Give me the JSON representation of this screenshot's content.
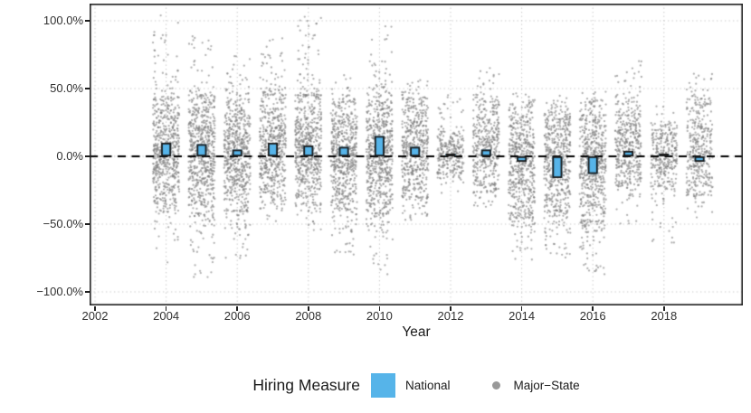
{
  "chart_data": {
    "type": "scatter+bar",
    "title": "",
    "xlabel": "Year",
    "ylabel": "",
    "x_ticks": [
      {
        "label": "2002",
        "value": 2002
      },
      {
        "label": "2004",
        "value": 2004
      },
      {
        "label": "2006",
        "value": 2006
      },
      {
        "label": "2008",
        "value": 2008
      },
      {
        "label": "2010",
        "value": 2010
      },
      {
        "label": "2012",
        "value": 2012
      },
      {
        "label": "2014",
        "value": 2014
      },
      {
        "label": "2016",
        "value": 2016
      },
      {
        "label": "2018",
        "value": 2018
      }
    ],
    "y_ticks": [
      {
        "label": "100.0%",
        "value": 100
      },
      {
        "label": "50.0%",
        "value": 50
      },
      {
        "label": "0.0%",
        "value": 0
      },
      {
        "label": "−50.0%",
        "value": -50
      },
      {
        "label": "−100.0%",
        "value": -100
      }
    ],
    "xlim": [
      2001.85,
      2020.2
    ],
    "ylim": [
      -110,
      112.5
    ],
    "grid": "dotted",
    "zero_reference_line": {
      "y": 0,
      "style": "dashed",
      "color": "#000000"
    },
    "legend": {
      "title": "Hiring Measure",
      "position": "bottom",
      "items": [
        {
          "label": "National",
          "marker": "square",
          "color": "#56B4E9"
        },
        {
          "label": "Major−State",
          "marker": "dot",
          "color": "#999999"
        }
      ]
    },
    "series": [
      {
        "name": "National",
        "type": "bar",
        "color": "#56B4E9",
        "outline": "#1a1a1a",
        "years": [
          2004,
          2005,
          2006,
          2007,
          2008,
          2009,
          2010,
          2011,
          2012,
          2013,
          2014,
          2015,
          2016,
          2017,
          2018,
          2019
        ],
        "values": [
          10,
          9,
          5,
          10,
          8,
          7,
          15,
          7,
          2,
          5,
          -4,
          -16,
          -13,
          4,
          2,
          -4
        ]
      },
      {
        "name": "Major−State",
        "type": "jitter-scatter",
        "color": "#7d7d7d",
        "point_alpha": 0.6,
        "clouds": [
          {
            "year": 2004,
            "dense": [
              -38,
              42
            ],
            "range": [
              -80,
              104
            ],
            "n": 620
          },
          {
            "year": 2005,
            "dense": [
              -42,
              45
            ],
            "range": [
              -90,
              92
            ],
            "n": 680
          },
          {
            "year": 2006,
            "dense": [
              -40,
              42
            ],
            "range": [
              -75,
              76
            ],
            "n": 620
          },
          {
            "year": 2007,
            "dense": [
              -34,
              45
            ],
            "range": [
              -48,
              88
            ],
            "n": 560
          },
          {
            "year": 2008,
            "dense": [
              -36,
              45
            ],
            "range": [
              -55,
              104
            ],
            "n": 620
          },
          {
            "year": 2009,
            "dense": [
              -38,
              40
            ],
            "range": [
              -73,
              62
            ],
            "n": 600
          },
          {
            "year": 2010,
            "dense": [
              -42,
              45
            ],
            "range": [
              -93,
              96
            ],
            "n": 680
          },
          {
            "year": 2011,
            "dense": [
              -30,
              42
            ],
            "range": [
              -48,
              57
            ],
            "n": 520
          },
          {
            "year": 2012,
            "dense": [
              -16,
              18
            ],
            "range": [
              -30,
              47
            ],
            "n": 280
          },
          {
            "year": 2013,
            "dense": [
              -26,
              40
            ],
            "range": [
              -38,
              66
            ],
            "n": 430
          },
          {
            "year": 2014,
            "dense": [
              -42,
              40
            ],
            "range": [
              -78,
              48
            ],
            "n": 560
          },
          {
            "year": 2015,
            "dense": [
              -40,
              38
            ],
            "range": [
              -76,
              45
            ],
            "n": 560
          },
          {
            "year": 2016,
            "dense": [
              -48,
              40
            ],
            "range": [
              -87,
              48
            ],
            "n": 600
          },
          {
            "year": 2017,
            "dense": [
              -22,
              40
            ],
            "range": [
              -52,
              76
            ],
            "n": 430
          },
          {
            "year": 2018,
            "dense": [
              -22,
              25
            ],
            "range": [
              -70,
              40
            ],
            "n": 330
          },
          {
            "year": 2019,
            "dense": [
              -28,
              42
            ],
            "range": [
              -46,
              62
            ],
            "n": 380
          }
        ]
      }
    ],
    "colors": {
      "national_bar": "#56B4E9",
      "major_state_point": "#999999",
      "gridline": "#c7c7c7",
      "panel_border": "#1f1f1f",
      "zero_line": "#000000"
    }
  }
}
